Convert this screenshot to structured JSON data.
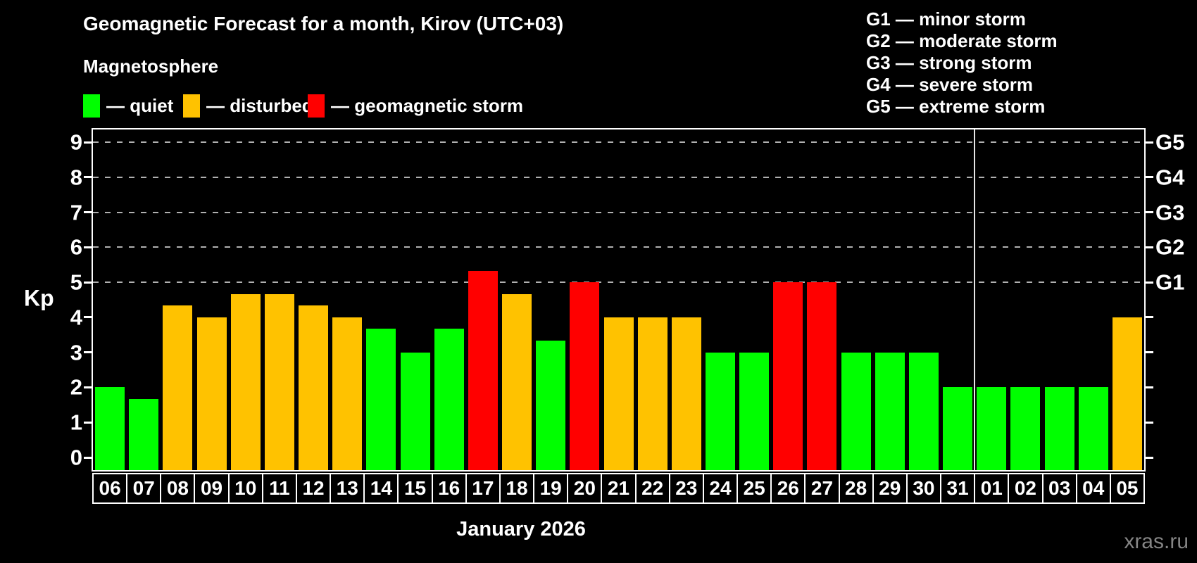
{
  "title": "Geomagnetic Forecast for a month, Kirov (UTC+03)",
  "subtitle": "Magnetosphere",
  "legend": {
    "items": [
      {
        "name": "quiet",
        "label": "— quiet",
        "color": "#00ff00"
      },
      {
        "name": "disturbed",
        "label": "— disturbed",
        "color": "#ffc200"
      },
      {
        "name": "storm",
        "label": "— geomagnetic storm",
        "color": "#ff0000"
      }
    ]
  },
  "storm_scale_legend": [
    "G1 — minor storm",
    "G2 — moderate storm",
    "G3 — strong storm",
    "G4 — severe storm",
    "G5 — extreme storm"
  ],
  "watermark": "xras.ru",
  "chart_data": {
    "type": "bar",
    "title": "Geomagnetic Forecast for a month, Kirov (UTC+03)",
    "xlabel": "January 2026",
    "ylabel": "Kp",
    "ylim": [
      0,
      9
    ],
    "yticks": [
      0,
      1,
      2,
      3,
      4,
      5,
      6,
      7,
      8,
      9
    ],
    "gridlines_at": [
      5,
      6,
      7,
      8,
      9
    ],
    "grid": "dashed, horizontal, storm levels only",
    "legend_position": "top",
    "right_axis_labels": [
      {
        "value": 5,
        "label": "G1"
      },
      {
        "value": 6,
        "label": "G2"
      },
      {
        "value": 7,
        "label": "G3"
      },
      {
        "value": 8,
        "label": "G4"
      },
      {
        "value": 9,
        "label": "G5"
      }
    ],
    "categories": [
      "06",
      "07",
      "08",
      "09",
      "10",
      "11",
      "12",
      "13",
      "14",
      "15",
      "16",
      "17",
      "18",
      "19",
      "20",
      "21",
      "22",
      "23",
      "24",
      "25",
      "26",
      "27",
      "28",
      "29",
      "30",
      "31",
      "01",
      "02",
      "03",
      "04",
      "05"
    ],
    "values": [
      2,
      1.67,
      4.33,
      4,
      4.67,
      4.67,
      4.33,
      4,
      3.67,
      3,
      3.67,
      5.33,
      4.67,
      3.33,
      5,
      4,
      4,
      4,
      3,
      3,
      5,
      5,
      3,
      3,
      3,
      2,
      2,
      2,
      2,
      2,
      4
    ],
    "statuses": [
      "quiet",
      "quiet",
      "disturbed",
      "disturbed",
      "disturbed",
      "disturbed",
      "disturbed",
      "disturbed",
      "quiet",
      "quiet",
      "quiet",
      "storm",
      "disturbed",
      "quiet",
      "storm",
      "disturbed",
      "disturbed",
      "disturbed",
      "quiet",
      "quiet",
      "storm",
      "storm",
      "quiet",
      "quiet",
      "quiet",
      "quiet",
      "quiet",
      "quiet",
      "quiet",
      "quiet",
      "disturbed"
    ],
    "colors_by_status": {
      "quiet": "#00ff00",
      "disturbed": "#ffc200",
      "storm": "#ff0000"
    },
    "month_boundary_after_index": 25
  }
}
